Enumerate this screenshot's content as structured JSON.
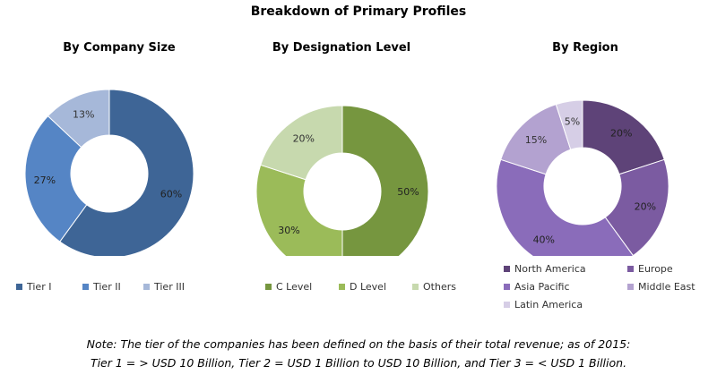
{
  "title": "Breakdown of Primary Profiles",
  "chart_data": [
    {
      "type": "pie",
      "title": "By Company Size",
      "categories": [
        "Tier I",
        "Tier II",
        "Tier III"
      ],
      "values": [
        60,
        27,
        13
      ],
      "labels": [
        "60%",
        "27%",
        "13%"
      ],
      "colors": [
        "#3E6596",
        "#5585C5",
        "#A6B8D9"
      ],
      "legend": "bottom"
    },
    {
      "type": "pie",
      "title": "By Designation Level",
      "categories": [
        "C Level",
        "D Level",
        "Others"
      ],
      "values": [
        50,
        30,
        20
      ],
      "labels": [
        "50%",
        "30%",
        "20%"
      ],
      "colors": [
        "#76963F",
        "#9BBB59",
        "#C7D9AE"
      ],
      "legend": "bottom"
    },
    {
      "type": "pie",
      "title": "By Region",
      "categories": [
        "North America",
        "Europe",
        "Asia Pacific",
        "Middle East",
        "Latin America"
      ],
      "values": [
        20,
        20,
        40,
        15,
        5
      ],
      "labels": [
        "20%",
        "20%",
        "40%",
        "15%",
        "5%"
      ],
      "colors": [
        "#5E4378",
        "#7B5BA1",
        "#8A6CBA",
        "#B3A2D0",
        "#D6CEE6"
      ],
      "legend": "bottom"
    }
  ],
  "note": {
    "line1": "Note: The tier of the companies has been defined on the basis of their total revenue; as of 2015:",
    "line2": "Tier 1 = > USD 10 Billion, Tier 2 = USD 1 Billion to USD 10 Billion, and Tier 3 = < USD 1 Billion."
  }
}
